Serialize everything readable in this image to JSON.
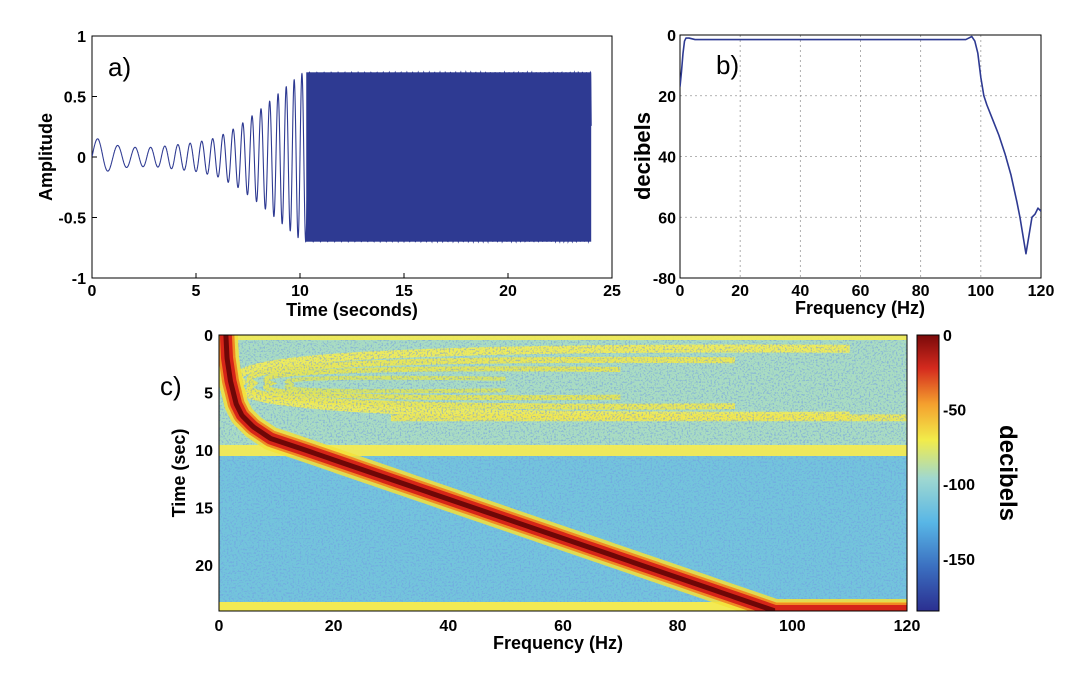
{
  "chart_data": [
    {
      "panel": "a)",
      "type": "line",
      "title": "",
      "xlabel": "Time (seconds)",
      "ylabel": "Amplitude",
      "xlim": [
        0,
        25
      ],
      "ylim": [
        -1,
        1
      ],
      "xticks": [
        "0",
        "5",
        "10",
        "15",
        "20",
        "25"
      ],
      "yticks": [
        "1",
        "0.5",
        "0",
        "-0.5",
        "-1"
      ],
      "series": [
        {
          "color": "#2e3a92",
          "description_of_signal": "",
          "x": [
            0,
            0.3,
            1,
            2,
            3,
            4,
            5,
            6,
            7,
            8,
            9,
            10,
            10.2,
            11,
            15,
            20,
            24
          ],
          "y_envelope": [
            0.15,
            0.15,
            0.1,
            0.08,
            0.08,
            0.1,
            0.12,
            0.16,
            0.25,
            0.38,
            0.53,
            0.68,
            0.7,
            0.7,
            0.7,
            0.7,
            0.7
          ]
        }
      ]
    },
    {
      "panel": "b)",
      "type": "line",
      "title": "",
      "xlabel": "Frequency (Hz)",
      "ylabel": "decibels",
      "xlim": [
        0,
        120
      ],
      "ylim": [
        -80,
        0
      ],
      "y_axis_inverted_labels": true,
      "xticks": [
        "0",
        "20",
        "40",
        "60",
        "80",
        "100",
        "120"
      ],
      "yticks": [
        "0",
        "20",
        "40",
        "60",
        "-80"
      ],
      "grid": true,
      "series": [
        {
          "color": "#2e3a92",
          "x": [
            0,
            0.5,
            1,
            1.5,
            2,
            3,
            5,
            10,
            20,
            40,
            60,
            80,
            90,
            95,
            96,
            97,
            98,
            99,
            100,
            101,
            102,
            104,
            106,
            108,
            110,
            112,
            113,
            114,
            115,
            116,
            117,
            118,
            119,
            120
          ],
          "y": [
            -17,
            -12,
            -6,
            -2,
            -1,
            -1,
            -1.5,
            -1.5,
            -1.5,
            -1.5,
            -1.5,
            -1.5,
            -1.5,
            -1.5,
            -1,
            -0.5,
            -2,
            -6,
            -14,
            -20,
            -23,
            -28,
            -33,
            -39,
            -46,
            -55,
            -60,
            -66,
            -72,
            -66,
            -60,
            -59,
            -57,
            -58
          ]
        }
      ]
    },
    {
      "panel": "c)",
      "type": "heatmap",
      "title": "",
      "xlabel": "Frequency (Hz)",
      "ylabel": "Time (sec)",
      "xlim": [
        0,
        120
      ],
      "ylim": [
        0,
        24
      ],
      "xticks": [
        "0",
        "20",
        "40",
        "60",
        "80",
        "100",
        "120"
      ],
      "yticks": [
        "0",
        "5",
        "10",
        "15",
        "20"
      ],
      "colorbar": {
        "label": "decibels",
        "range": [
          -185,
          0
        ],
        "ticks": [
          "0",
          "-50",
          "-100",
          "-150"
        ],
        "colormap": "jet"
      },
      "ridge": {
        "time_sec": [
          0,
          2,
          4,
          6,
          7,
          8,
          9,
          10,
          24
        ],
        "frequency_hz": [
          1.2,
          1.4,
          2,
          3,
          4,
          6,
          9,
          15,
          97
        ]
      }
    }
  ]
}
